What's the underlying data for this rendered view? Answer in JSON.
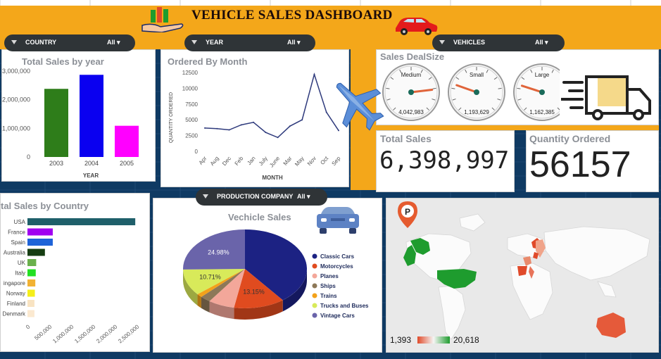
{
  "header": {
    "title": "VEHICLE SALES DASHBOARD"
  },
  "slicers": {
    "country": {
      "label": "COUNTRY",
      "value": "All"
    },
    "year": {
      "label": "YEAR",
      "value": "All"
    },
    "vehicles": {
      "label": "VEHICLES",
      "value": "All"
    },
    "production_company": {
      "label": "PRODUCTION COMPANY",
      "value": "All"
    }
  },
  "kpis": {
    "total_sales_label": "Total Sales",
    "total_sales_value": "6,398,997",
    "quantity_label": "Quantity Ordered",
    "quantity_value": "56157"
  },
  "gauges_title": "Sales DealSize",
  "map": {
    "legend_min": "1,393",
    "legend_max": "20,618",
    "colors": {
      "low": "#e04a2a",
      "high": "#1e9c2e"
    }
  },
  "colors": {
    "banner": "#f4a71a",
    "slicer": "#2f3437"
  },
  "chart_data": [
    {
      "id": "sales_by_year",
      "type": "bar",
      "title": "Total Sales by year",
      "xlabel": "YEAR",
      "ylabel": "",
      "categories": [
        "2003",
        "2004",
        "2005"
      ],
      "values": [
        2380000,
        2870000,
        1090000
      ],
      "colors": [
        "#2e7d1a",
        "#0a00f0",
        "#ff00ff"
      ],
      "ylim": [
        0,
        3000000
      ],
      "yticks": [
        "0",
        "1,000,000",
        "2,000,000",
        "3,000,000"
      ]
    },
    {
      "id": "ordered_by_month",
      "type": "line",
      "title": "Ordered By Month",
      "xlabel": "MONTH",
      "ylabel": "QUANTITY ORDERED",
      "categories": [
        "Apr",
        "Aug",
        "Dec",
        "Feb",
        "Jan",
        "July",
        "June",
        "Mar",
        "May",
        "Nov",
        "Oct",
        "Sep"
      ],
      "values": [
        3700,
        3600,
        3400,
        4200,
        4600,
        3000,
        2200,
        4000,
        5000,
        12200,
        6200,
        3300
      ],
      "color": "#2e3a7c",
      "ylim": [
        0,
        12500
      ],
      "yticks": [
        "0",
        "2500",
        "5000",
        "7500",
        "10000",
        "12500"
      ]
    },
    {
      "id": "sales_dealsize",
      "type": "gauge",
      "title": "Sales DealSize",
      "categories": [
        "Medium",
        "Small",
        "Large"
      ],
      "values": [
        4042983,
        1193629,
        1162385
      ],
      "labels": [
        "4,042,983",
        "1,193,629",
        "1,162,385"
      ]
    },
    {
      "id": "sales_by_country",
      "type": "bar",
      "orientation": "horizontal",
      "title": "tal Sales by Country",
      "categories": [
        "USA",
        "France",
        "Spain",
        "Australia",
        "UK",
        "Italy",
        "ingapore",
        "Norway",
        "Finland",
        "Denmark"
      ],
      "values": [
        2470000,
        580000,
        580000,
        400000,
        200000,
        190000,
        180000,
        170000,
        160000,
        160000
      ],
      "colors": [
        "#1f5f6a",
        "#a000f0",
        "#1e63d8",
        "#153d12",
        "#6ab04c",
        "#22e022",
        "#f2b233",
        "#f5ee1a",
        "#f8e3c2",
        "#fbe9d0"
      ],
      "xlim": [
        0,
        2500000
      ],
      "xticks": [
        "0",
        "500,000",
        "1,000,000",
        "1,500,000",
        "2,000,000",
        "2,500,000"
      ]
    },
    {
      "id": "vehicle_sales",
      "type": "pie",
      "title": "Vechicle Sales",
      "categories": [
        "Classic Cars",
        "Motorcycles",
        "Planes",
        "Ships",
        "Trains",
        "Trucks and Buses",
        "Vintage Cars"
      ],
      "values": [
        39.1,
        13.15,
        6.79,
        2.71,
        1.43,
        10.71,
        24.98
      ],
      "colors": [
        "#1c2283",
        "#e04b1f",
        "#f3a79a",
        "#8d7858",
        "#f3a21a",
        "#d8ea5a",
        "#6a64aa"
      ],
      "labels": [
        "",
        "13.15%",
        "",
        "",
        "",
        "10.71%",
        "24.98%"
      ]
    }
  ]
}
